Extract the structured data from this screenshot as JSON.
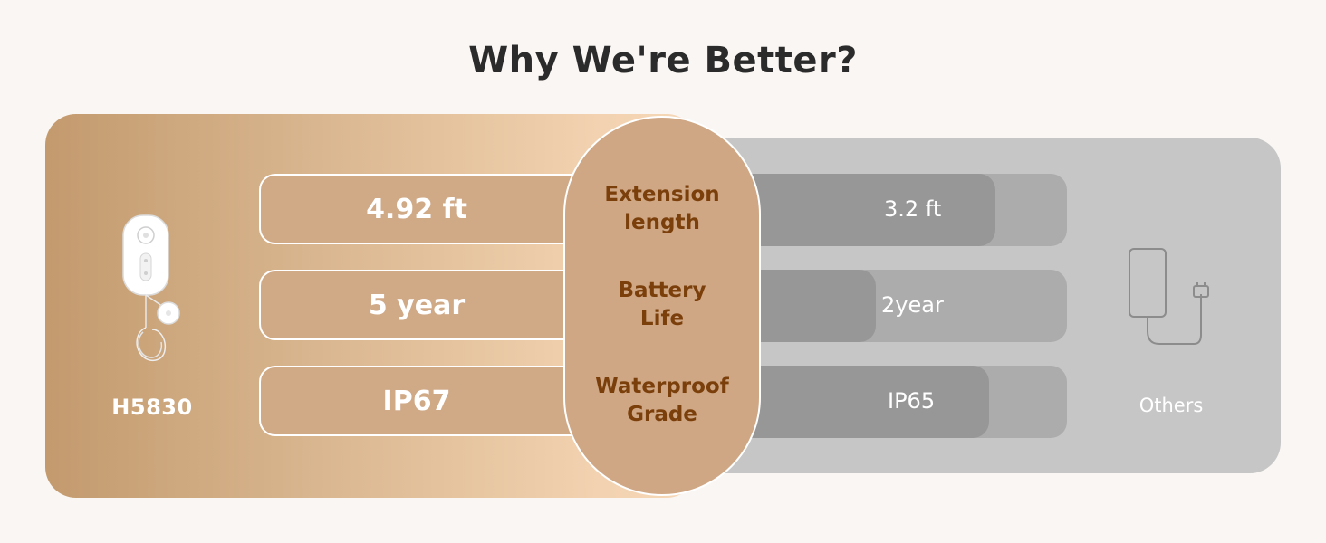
{
  "title": "Why We're Better?",
  "ours": {
    "name": "H5830",
    "values": [
      "4.92 ft",
      "5 year",
      "IP67"
    ]
  },
  "features": [
    {
      "line1": "Extension",
      "line2": "length"
    },
    {
      "line1": "Battery",
      "line2": "Life"
    },
    {
      "line1": "Waterproof",
      "line2": "Grade"
    }
  ],
  "others": {
    "name": "Others",
    "values": [
      "3.2 ft",
      "2year",
      "IP65"
    ]
  },
  "icons": {
    "ours": "water-leak-sensor-device-icon",
    "others": "generic-sensor-outline-icon"
  },
  "colors": {
    "feature_text": "#7a3f0a",
    "ours_gradient_start": "#c39a6e",
    "ours_gradient_end": "#f6d8b8",
    "others_panel": "#c6c6c6"
  }
}
